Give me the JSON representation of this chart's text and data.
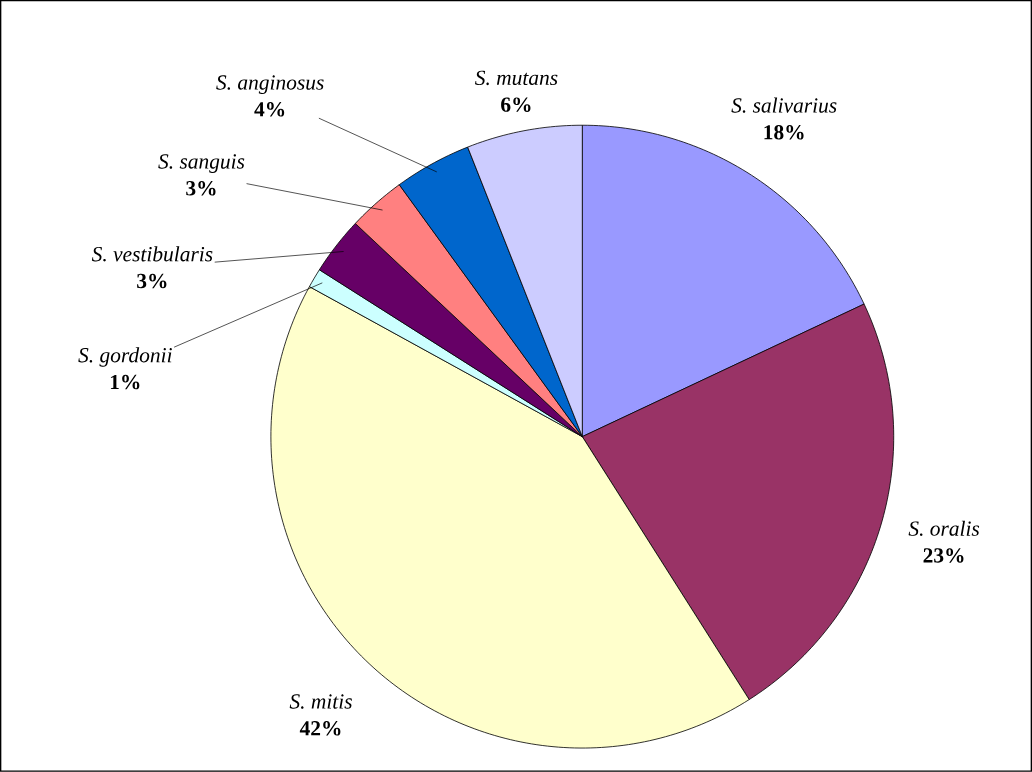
{
  "chart_data": {
    "type": "pie",
    "categories": [
      "S. salivarius",
      "S. oralis",
      "S. mitis",
      "S. gordonii",
      "S. vestibularis",
      "S. sanguis",
      "S. anginosus",
      "S. mutans"
    ],
    "values": [
      18,
      23,
      42,
      1,
      3,
      3,
      4,
      6
    ],
    "colors": [
      "#9999ff",
      "#993366",
      "#ffffcc",
      "#ccffff",
      "#660066",
      "#ff8080",
      "#0066cc",
      "#ccccff"
    ],
    "value_labels": [
      "18%",
      "23%",
      "42%",
      "1%",
      "3%",
      "3%",
      "4%",
      "6%"
    ]
  }
}
